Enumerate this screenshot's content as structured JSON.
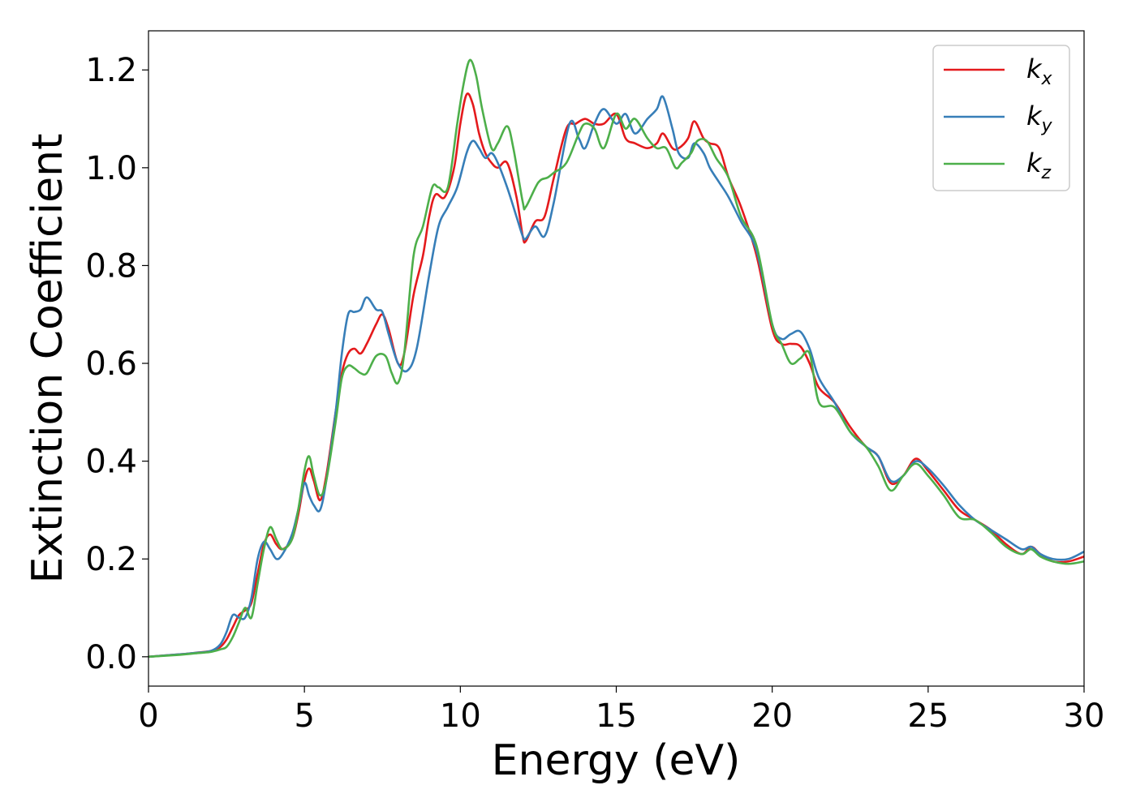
{
  "chart_data": {
    "type": "line",
    "xlabel": "Energy (eV)",
    "ylabel": "Extinction Coefficient",
    "xlim": [
      0,
      30
    ],
    "ylim": [
      -0.06,
      1.28
    ],
    "xticks": [
      "0",
      "5",
      "10",
      "15",
      "20",
      "25",
      "30"
    ],
    "yticks": [
      "0.0",
      "0.2",
      "0.4",
      "0.6",
      "0.8",
      "1.0",
      "1.2"
    ],
    "grid": false,
    "legend_position": "top-right",
    "series": [
      {
        "name": "kx",
        "base": "k",
        "sub": "x",
        "color": "#e41a1c",
        "x": [
          0,
          1,
          1.5,
          2,
          2.3,
          2.5,
          2.7,
          2.9,
          3.1,
          3.3,
          3.5,
          3.7,
          3.9,
          4.1,
          4.3,
          4.6,
          4.8,
          5.0,
          5.15,
          5.3,
          5.5,
          5.7,
          6.0,
          6.2,
          6.4,
          6.6,
          6.8,
          7.0,
          7.3,
          7.5,
          7.7,
          8.0,
          8.2,
          8.5,
          8.8,
          9.0,
          9.2,
          9.5,
          9.8,
          10.0,
          10.2,
          10.4,
          10.6,
          10.8,
          11.0,
          11.2,
          11.5,
          11.8,
          12.0,
          12.1,
          12.4,
          12.7,
          13.0,
          13.4,
          13.7,
          14.0,
          14.3,
          14.6,
          15.0,
          15.3,
          15.6,
          16.0,
          16.3,
          16.5,
          16.8,
          17.0,
          17.3,
          17.5,
          17.8,
          18.0,
          18.3,
          18.6,
          19.0,
          19.5,
          20.0,
          20.3,
          20.6,
          20.9,
          21.2,
          21.5,
          22.0,
          22.5,
          23.0,
          23.4,
          23.8,
          24.2,
          24.6,
          25.0,
          25.5,
          26.0,
          26.5,
          27.0,
          27.5,
          28.0,
          28.3,
          28.6,
          29.0,
          29.5,
          30.0
        ],
        "y": [
          0,
          0.005,
          0.008,
          0.012,
          0.02,
          0.035,
          0.06,
          0.085,
          0.095,
          0.11,
          0.17,
          0.23,
          0.25,
          0.23,
          0.22,
          0.24,
          0.29,
          0.36,
          0.385,
          0.36,
          0.32,
          0.37,
          0.5,
          0.58,
          0.62,
          0.63,
          0.62,
          0.64,
          0.68,
          0.7,
          0.67,
          0.6,
          0.62,
          0.74,
          0.82,
          0.9,
          0.945,
          0.94,
          1.0,
          1.09,
          1.15,
          1.13,
          1.07,
          1.03,
          1.01,
          1.0,
          1.01,
          0.94,
          0.86,
          0.85,
          0.89,
          0.9,
          0.98,
          1.08,
          1.09,
          1.1,
          1.09,
          1.09,
          1.11,
          1.06,
          1.05,
          1.04,
          1.05,
          1.07,
          1.04,
          1.04,
          1.06,
          1.095,
          1.06,
          1.05,
          1.04,
          0.98,
          0.92,
          0.82,
          0.67,
          0.64,
          0.64,
          0.635,
          0.6,
          0.55,
          0.52,
          0.47,
          0.43,
          0.41,
          0.355,
          0.37,
          0.405,
          0.38,
          0.34,
          0.3,
          0.28,
          0.26,
          0.23,
          0.21,
          0.225,
          0.21,
          0.195,
          0.195,
          0.205
        ]
      },
      {
        "name": "ky",
        "base": "k",
        "sub": "y",
        "color": "#377eb8",
        "x": [
          0,
          1,
          1.5,
          2,
          2.3,
          2.5,
          2.7,
          2.9,
          3.1,
          3.3,
          3.5,
          3.7,
          3.9,
          4.1,
          4.3,
          4.6,
          4.8,
          5.0,
          5.15,
          5.3,
          5.5,
          5.7,
          6.0,
          6.2,
          6.4,
          6.6,
          6.8,
          7.0,
          7.3,
          7.5,
          7.7,
          8.0,
          8.3,
          8.6,
          9.0,
          9.3,
          9.6,
          9.9,
          10.2,
          10.4,
          10.6,
          10.8,
          11.0,
          11.2,
          11.5,
          11.8,
          12.0,
          12.1,
          12.4,
          12.7,
          13.0,
          13.5,
          13.8,
          14.0,
          14.3,
          14.6,
          15.0,
          15.3,
          15.6,
          16.0,
          16.3,
          16.5,
          16.8,
          17.0,
          17.3,
          17.5,
          17.8,
          18.0,
          18.3,
          18.6,
          19.0,
          19.5,
          20.0,
          20.3,
          20.6,
          20.9,
          21.2,
          21.5,
          22.0,
          22.5,
          23.0,
          23.4,
          23.8,
          24.2,
          24.6,
          25.0,
          25.5,
          26.0,
          26.5,
          27.0,
          27.5,
          28.0,
          28.3,
          28.6,
          29.0,
          29.5,
          30.0
        ],
        "y": [
          0,
          0.005,
          0.008,
          0.012,
          0.025,
          0.05,
          0.085,
          0.08,
          0.08,
          0.12,
          0.2,
          0.235,
          0.22,
          0.2,
          0.21,
          0.25,
          0.3,
          0.355,
          0.33,
          0.31,
          0.3,
          0.36,
          0.5,
          0.62,
          0.7,
          0.705,
          0.71,
          0.735,
          0.71,
          0.705,
          0.66,
          0.6,
          0.585,
          0.63,
          0.78,
          0.88,
          0.92,
          0.96,
          1.03,
          1.055,
          1.04,
          1.02,
          1.03,
          1.01,
          0.96,
          0.9,
          0.86,
          0.855,
          0.88,
          0.86,
          0.93,
          1.09,
          1.06,
          1.04,
          1.09,
          1.12,
          1.09,
          1.11,
          1.07,
          1.1,
          1.12,
          1.145,
          1.08,
          1.03,
          1.02,
          1.05,
          1.03,
          1.0,
          0.97,
          0.94,
          0.89,
          0.83,
          0.68,
          0.65,
          0.66,
          0.665,
          0.63,
          0.57,
          0.52,
          0.46,
          0.43,
          0.41,
          0.36,
          0.37,
          0.4,
          0.385,
          0.35,
          0.31,
          0.28,
          0.26,
          0.24,
          0.22,
          0.225,
          0.21,
          0.2,
          0.2,
          0.215
        ]
      },
      {
        "name": "kz",
        "base": "k",
        "sub": "z",
        "color": "#4daf4a",
        "x": [
          0,
          1,
          1.5,
          2,
          2.3,
          2.5,
          2.7,
          2.9,
          3.1,
          3.3,
          3.5,
          3.7,
          3.9,
          4.1,
          4.3,
          4.6,
          4.8,
          5.0,
          5.15,
          5.3,
          5.5,
          5.7,
          6.0,
          6.2,
          6.4,
          6.6,
          6.8,
          7.0,
          7.3,
          7.6,
          7.8,
          8.0,
          8.2,
          8.5,
          8.8,
          9.1,
          9.3,
          9.6,
          9.9,
          10.1,
          10.3,
          10.5,
          10.7,
          11.0,
          11.2,
          11.5,
          11.7,
          12.0,
          12.1,
          12.5,
          12.8,
          13.0,
          13.4,
          13.8,
          14.0,
          14.3,
          14.6,
          15.0,
          15.3,
          15.6,
          16.0,
          16.3,
          16.6,
          16.9,
          17.1,
          17.4,
          17.6,
          17.9,
          18.2,
          18.6,
          19.0,
          19.5,
          20.0,
          20.3,
          20.6,
          20.9,
          21.2,
          21.5,
          22.0,
          22.5,
          23.0,
          23.4,
          23.8,
          24.2,
          24.6,
          25.0,
          25.5,
          26.0,
          26.5,
          27.0,
          27.5,
          28.0,
          28.3,
          28.6,
          29.0,
          29.5,
          30.0
        ],
        "y": [
          0,
          0.004,
          0.007,
          0.01,
          0.015,
          0.02,
          0.04,
          0.07,
          0.1,
          0.08,
          0.15,
          0.22,
          0.265,
          0.24,
          0.22,
          0.24,
          0.3,
          0.38,
          0.41,
          0.37,
          0.33,
          0.36,
          0.48,
          0.57,
          0.595,
          0.59,
          0.58,
          0.58,
          0.615,
          0.615,
          0.58,
          0.56,
          0.62,
          0.82,
          0.88,
          0.96,
          0.96,
          0.96,
          1.09,
          1.17,
          1.22,
          1.19,
          1.12,
          1.04,
          1.05,
          1.085,
          1.04,
          0.93,
          0.92,
          0.97,
          0.98,
          0.99,
          1.01,
          1.07,
          1.09,
          1.08,
          1.04,
          1.11,
          1.08,
          1.1,
          1.06,
          1.04,
          1.04,
          1.0,
          1.01,
          1.03,
          1.055,
          1.055,
          1.02,
          0.98,
          0.9,
          0.84,
          0.68,
          0.64,
          0.6,
          0.61,
          0.62,
          0.52,
          0.51,
          0.46,
          0.43,
          0.39,
          0.34,
          0.37,
          0.395,
          0.37,
          0.33,
          0.285,
          0.28,
          0.255,
          0.225,
          0.21,
          0.22,
          0.205,
          0.195,
          0.19,
          0.195
        ]
      }
    ]
  }
}
